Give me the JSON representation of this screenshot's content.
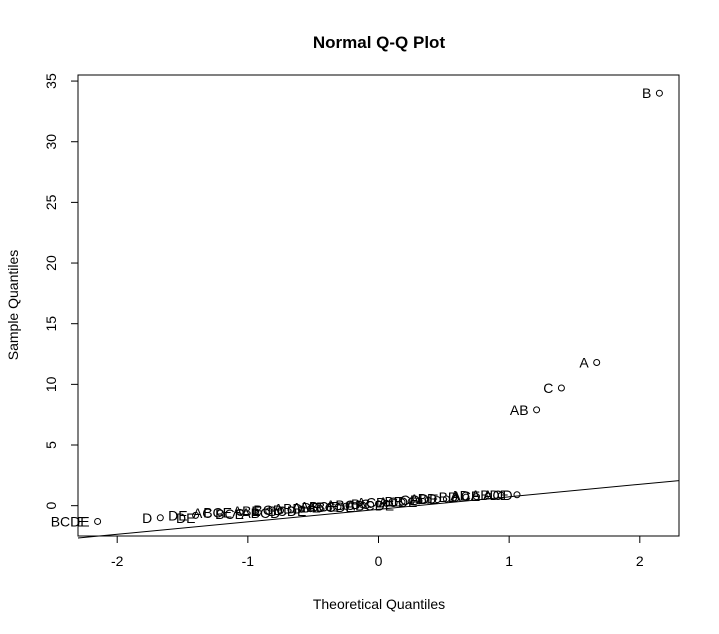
{
  "chart_data": {
    "type": "scatter",
    "title": "Normal Q-Q Plot",
    "xlabel": "Theoretical Quantiles",
    "ylabel": "Sample Quantiles",
    "xlim": [
      -2.3,
      2.3
    ],
    "ylim": [
      -2.5,
      35.5
    ],
    "x_ticks": [
      -2,
      -1,
      0,
      1,
      2
    ],
    "y_ticks": [
      0,
      5,
      10,
      15,
      20,
      25,
      30,
      35
    ],
    "grid": false,
    "legend": "none",
    "reference_line": {
      "intercept": -0.3,
      "slope": 1.03
    },
    "points": [
      {
        "x": 2.15,
        "y": 34.0,
        "label": "B"
      },
      {
        "x": 1.67,
        "y": 11.8,
        "label": "A"
      },
      {
        "x": 1.4,
        "y": 9.7,
        "label": "C"
      },
      {
        "x": 1.21,
        "y": 7.9,
        "label": "AB"
      },
      {
        "x": 1.06,
        "y": 0.9,
        "label": "ABDE"
      },
      {
        "x": 0.94,
        "y": 0.85,
        "label": ""
      },
      {
        "x": 0.84,
        "y": 0.8,
        "label": "ACE"
      },
      {
        "x": 0.75,
        "y": 0.75,
        "label": ""
      },
      {
        "x": 0.67,
        "y": 0.7,
        "label": "BD"
      },
      {
        "x": 0.59,
        "y": 0.6,
        "label": ""
      },
      {
        "x": 0.52,
        "y": 0.55,
        "label": "ADE"
      },
      {
        "x": 0.45,
        "y": 0.5,
        "label": ""
      },
      {
        "x": 0.38,
        "y": 0.45,
        "label": "CD"
      },
      {
        "x": 0.31,
        "y": 0.4,
        "label": ""
      },
      {
        "x": 0.25,
        "y": 0.35,
        "label": "BE"
      },
      {
        "x": 0.18,
        "y": 0.3,
        "label": ""
      },
      {
        "x": 0.12,
        "y": 0.25,
        "label": "ACD"
      },
      {
        "x": 0.06,
        "y": 0.2,
        "label": ""
      },
      {
        "x": 0.0,
        "y": 0.15,
        "label": "BC"
      },
      {
        "x": -0.06,
        "y": 0.1,
        "label": ""
      },
      {
        "x": -0.12,
        "y": 0.05,
        "label": "ABC"
      },
      {
        "x": -0.18,
        "y": 0.0,
        "label": ""
      },
      {
        "x": -0.25,
        "y": -0.05,
        "label": "ABCE"
      },
      {
        "x": -0.31,
        "y": -0.1,
        "label": ""
      },
      {
        "x": -0.38,
        "y": -0.15,
        "label": "ADE"
      },
      {
        "x": -0.45,
        "y": -0.2,
        "label": ""
      },
      {
        "x": -0.52,
        "y": -0.25,
        "label": "ABD"
      },
      {
        "x": -0.59,
        "y": -0.3,
        "label": ""
      },
      {
        "x": -0.67,
        "y": -0.35,
        "label": "BCD"
      },
      {
        "x": -0.75,
        "y": -0.4,
        "label": ""
      },
      {
        "x": -0.84,
        "y": -0.45,
        "label": "ABE"
      },
      {
        "x": -0.94,
        "y": -0.5,
        "label": ""
      },
      {
        "x": -1.06,
        "y": -0.55,
        "label": "BCE"
      },
      {
        "x": -1.21,
        "y": -0.6,
        "label": "AC"
      },
      {
        "x": -1.4,
        "y": -0.8,
        "label": "DE"
      },
      {
        "x": -1.67,
        "y": -1.0,
        "label": "D"
      },
      {
        "x": -2.15,
        "y": -1.3,
        "label": "BCDE"
      }
    ],
    "crowded_text_labels": [
      {
        "x": -2.31,
        "y": -1.3,
        "label": "E"
      },
      {
        "x": -1.55,
        "y": -1.0,
        "label": "DE"
      },
      {
        "x": -1.25,
        "y": -0.7,
        "label": "BCE"
      },
      {
        "x": -1.05,
        "y": -0.6,
        "label": "ABCD"
      },
      {
        "x": -0.85,
        "y": -0.45,
        "label": "BCDE"
      },
      {
        "x": -0.55,
        "y": -0.1,
        "label": "ABCDE"
      },
      {
        "x": -0.25,
        "y": 0.0,
        "label": "ABCDE"
      },
      {
        "x": 0.0,
        "y": 0.3,
        "label": "ACDE"
      },
      {
        "x": 0.3,
        "y": 0.6,
        "label": "BD"
      },
      {
        "x": 0.55,
        "y": 0.85,
        "label": "AD"
      },
      {
        "x": 0.8,
        "y": 0.9,
        "label": "ACD"
      }
    ]
  }
}
